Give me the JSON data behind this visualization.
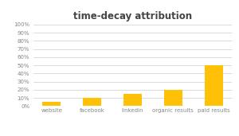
{
  "title": "time-decay attribution",
  "categories": [
    "website",
    "facebook",
    "linkedin",
    "organic results",
    "paid results"
  ],
  "values": [
    0.05,
    0.1,
    0.15,
    0.2,
    0.5
  ],
  "bar_color": "#FFC107",
  "ylim": [
    0,
    1.0
  ],
  "yticks": [
    0.0,
    0.1,
    0.2,
    0.3,
    0.4,
    0.5,
    0.6,
    0.7,
    0.8,
    0.9,
    1.0
  ],
  "background_color": "#ffffff",
  "grid_color": "#cccccc",
  "title_fontsize": 8.5,
  "tick_fontsize": 5,
  "xlabel_fontsize": 5,
  "title_color": "#444444",
  "tick_color": "#888888"
}
